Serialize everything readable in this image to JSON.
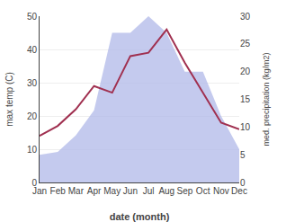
{
  "chart_data": {
    "type": "line",
    "categories": [
      "Jan",
      "Feb",
      "Mar",
      "Apr",
      "May",
      "Jun",
      "Jul",
      "Aug",
      "Sep",
      "Oct",
      "Nov",
      "Dec"
    ],
    "xlabel": "date (month)",
    "ylabel": "max temp (C)",
    "y2label": "med. precipitation (kg/m2)",
    "series": [
      {
        "type": "area",
        "color": "#b0b8e8",
        "axis": "y2",
        "values": [
          5,
          5.5,
          8.5,
          13,
          27,
          27,
          30,
          27,
          20,
          20,
          12,
          6
        ]
      },
      {
        "type": "line",
        "color": "#a03050",
        "values": [
          14,
          17,
          22,
          29,
          27,
          38,
          39,
          46,
          36,
          27,
          18,
          16
        ]
      }
    ],
    "ylim": [
      0,
      50
    ],
    "yticks": [
      0,
      10,
      20,
      30,
      40,
      50
    ],
    "y2lim": [
      0,
      30
    ],
    "y2ticks": [
      0,
      5,
      10,
      15,
      20,
      25,
      30
    ],
    "grid": true
  }
}
